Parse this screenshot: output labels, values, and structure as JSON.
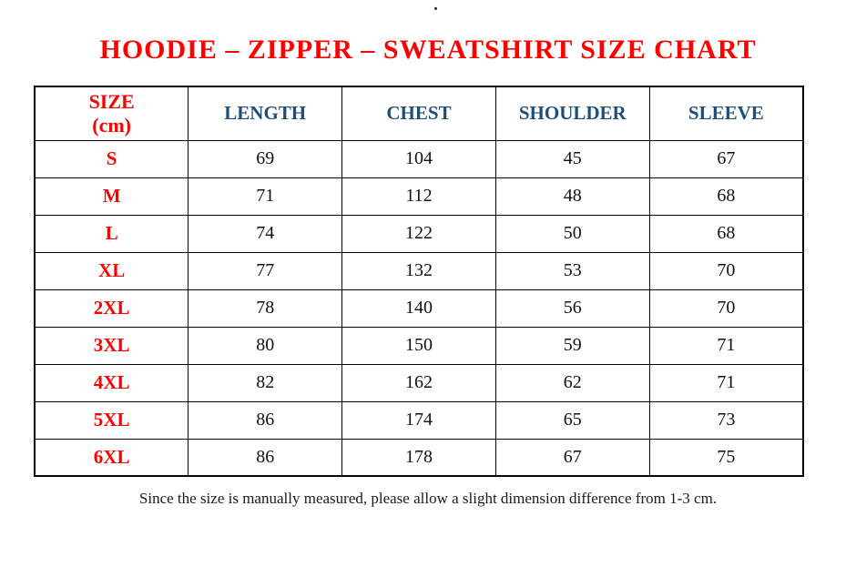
{
  "decorations": {
    "dot": "."
  },
  "title": "HOODIE – ZIPPER – SWEATSHIRT SIZE CHART",
  "colors": {
    "title_red": "#ff0000",
    "size_red": "#ff0000",
    "header_blue": "#1f4e79",
    "value_black": "#111111",
    "border_black": "#000000"
  },
  "table": {
    "size_header": {
      "line1": "SIZE",
      "line2": "(cm)"
    },
    "measure_columns": [
      "LENGTH",
      "CHEST",
      "SHOULDER",
      "SLEEVE"
    ],
    "rows": [
      {
        "size": "S",
        "values": [
          "69",
          "104",
          "45",
          "67"
        ]
      },
      {
        "size": "M",
        "values": [
          "71",
          "112",
          "48",
          "68"
        ]
      },
      {
        "size": "L",
        "values": [
          "74",
          "122",
          "50",
          "68"
        ]
      },
      {
        "size": "XL",
        "values": [
          "77",
          "132",
          "53",
          "70"
        ]
      },
      {
        "size": "2XL",
        "values": [
          "78",
          "140",
          "56",
          "70"
        ]
      },
      {
        "size": "3XL",
        "values": [
          "80",
          "150",
          "59",
          "71"
        ]
      },
      {
        "size": "4XL",
        "values": [
          "82",
          "162",
          "62",
          "71"
        ]
      },
      {
        "size": "5XL",
        "values": [
          "86",
          "174",
          "65",
          "73"
        ]
      },
      {
        "size": "6XL",
        "values": [
          "86",
          "178",
          "67",
          "75"
        ]
      }
    ]
  },
  "footnote": "Since the size is manually measured, please allow a slight dimension difference from 1-3 cm."
}
